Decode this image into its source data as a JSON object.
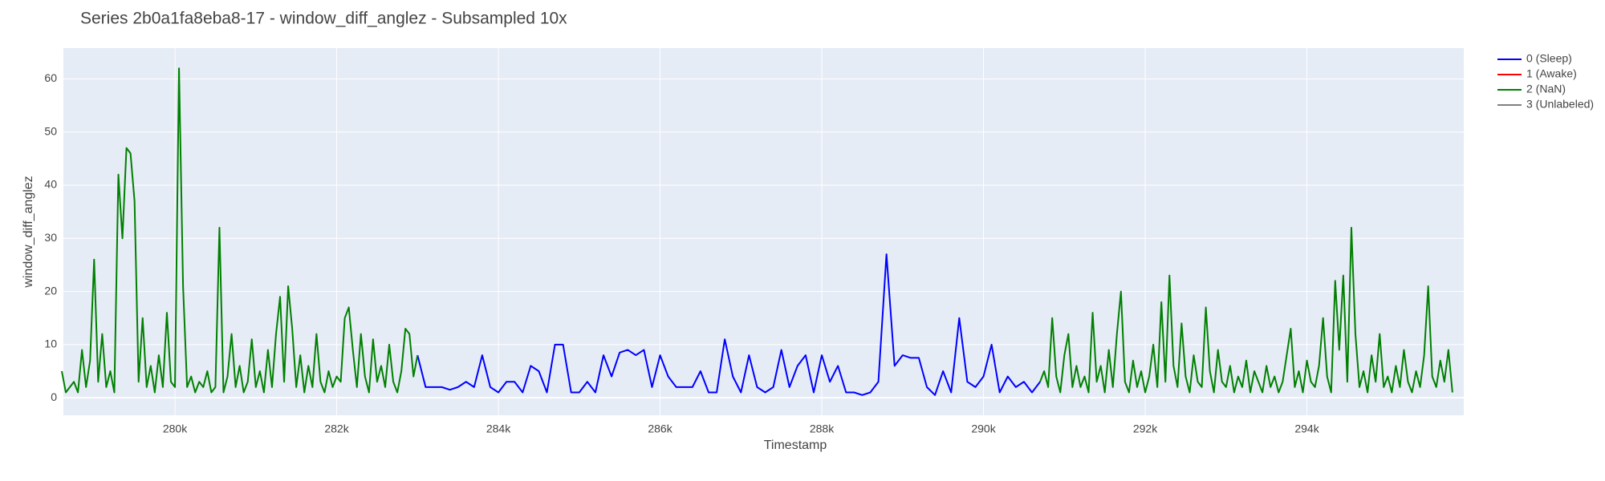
{
  "chart_data": {
    "type": "line",
    "title": "Series 2b0a1fa8eba8-17 - window_diff_anglez - Subsampled 10x",
    "x_label": "Timestamp",
    "y_label": "window_diff_anglez",
    "xlim": [
      278620,
      295940
    ],
    "ylim": [
      -3.3,
      65.8
    ],
    "xticks": [
      {
        "value": 280000,
        "label": "280k"
      },
      {
        "value": 282000,
        "label": "282k"
      },
      {
        "value": 284000,
        "label": "284k"
      },
      {
        "value": 286000,
        "label": "286k"
      },
      {
        "value": 288000,
        "label": "288k"
      },
      {
        "value": 290000,
        "label": "290k"
      },
      {
        "value": 292000,
        "label": "292k"
      },
      {
        "value": 294000,
        "label": "294k"
      }
    ],
    "yticks": [
      0,
      10,
      20,
      30,
      40,
      50,
      60
    ],
    "grid": true,
    "series": [
      {
        "name": "0 (Sleep)",
        "color": "#0000ff",
        "x": [
          283000,
          283100,
          283200,
          283300,
          283400,
          283500,
          283600,
          283700,
          283800,
          283900,
          284000,
          284100,
          284200,
          284300,
          284400,
          284500,
          284600,
          284700,
          284800,
          284900,
          285000,
          285100,
          285200,
          285300,
          285400,
          285500,
          285600,
          285700,
          285800,
          285900,
          286000,
          286100,
          286200,
          286300,
          286400,
          286500,
          286600,
          286700,
          286800,
          286900,
          287000,
          287100,
          287200,
          287300,
          287400,
          287500,
          287600,
          287700,
          287800,
          287900,
          288000,
          288100,
          288200,
          288300,
          288400,
          288500,
          288600,
          288700,
          288800,
          288900,
          289000,
          289100,
          289200,
          289300,
          289400,
          289500,
          289600,
          289700,
          289800,
          289900,
          290000,
          290100,
          290200,
          290300,
          290400,
          290500,
          290600,
          290700
        ],
        "values": [
          8,
          2,
          2,
          2,
          1.5,
          2,
          3,
          2,
          8,
          2,
          1,
          3,
          3,
          1,
          6,
          5,
          1,
          10,
          10,
          1,
          1,
          3,
          1,
          8,
          4,
          8.5,
          9,
          8,
          9,
          2,
          8,
          4,
          2,
          2,
          2,
          5,
          1,
          1,
          11,
          4,
          1,
          8,
          2,
          1,
          2,
          9,
          2,
          6,
          8,
          1,
          8,
          3,
          6,
          1,
          1,
          0.5,
          1,
          3,
          27,
          6,
          8,
          7.5,
          7.5,
          2,
          0.5,
          5,
          1,
          15,
          3,
          2,
          4,
          10,
          1,
          4,
          2,
          3,
          1,
          3
        ]
      },
      {
        "name": "1 (Awake)",
        "color": "#ff0000",
        "x": [],
        "values": []
      },
      {
        "name": "2 (NaN)",
        "color": "#008000",
        "x": [
          278600,
          278650,
          278700,
          278750,
          278800,
          278850,
          278900,
          278950,
          279000,
          279050,
          279100,
          279150,
          279200,
          279250,
          279300,
          279350,
          279400,
          279450,
          279500,
          279550,
          279600,
          279650,
          279700,
          279750,
          279800,
          279850,
          279900,
          279950,
          280000,
          280050,
          280100,
          280150,
          280200,
          280250,
          280300,
          280350,
          280400,
          280450,
          280500,
          280550,
          280600,
          280650,
          280700,
          280750,
          280800,
          280850,
          280900,
          280950,
          281000,
          281050,
          281100,
          281150,
          281200,
          281250,
          281300,
          281350,
          281400,
          281450,
          281500,
          281550,
          281600,
          281650,
          281700,
          281750,
          281800,
          281850,
          281900,
          281950,
          282000,
          282050,
          282100,
          282150,
          282200,
          282250,
          282300,
          282350,
          282400,
          282450,
          282500,
          282550,
          282600,
          282650,
          282700,
          282750,
          282800,
          282850,
          282900,
          282950,
          283000,
          286800,
          290700,
          290750,
          290800,
          290850,
          290900,
          290950,
          291000,
          291050,
          291100,
          291150,
          291200,
          291250,
          291300,
          291350,
          291400,
          291450,
          291500,
          291550,
          291600,
          291650,
          291700,
          291750,
          291800,
          291850,
          291900,
          291950,
          292000,
          292050,
          292100,
          292150,
          292200,
          292250,
          292300,
          292350,
          292400,
          292450,
          292500,
          292550,
          292600,
          292650,
          292700,
          292750,
          292800,
          292850,
          292900,
          292950,
          293000,
          293050,
          293100,
          293150,
          293200,
          293250,
          293300,
          293350,
          293400,
          293450,
          293500,
          293550,
          293600,
          293650,
          293700,
          293750,
          293800,
          293850,
          293900,
          293950,
          294000,
          294050,
          294100,
          294150,
          294200,
          294250,
          294300,
          294350,
          294400,
          294450,
          294500,
          294550,
          294600,
          294650,
          294700,
          294750,
          294800,
          294850,
          294900,
          294950,
          295000,
          295050,
          295100,
          295150,
          295200,
          295250,
          295300,
          295350,
          295400,
          295450,
          295500,
          295550,
          295600,
          295650,
          295700,
          295750,
          295800
        ],
        "values": [
          5,
          1,
          2,
          3,
          1,
          9,
          2,
          7,
          26,
          3,
          12,
          2,
          5,
          1,
          42,
          30,
          47,
          46,
          37,
          3,
          15,
          2,
          6,
          1,
          8,
          2,
          16,
          3,
          2,
          62,
          21,
          2,
          4,
          1,
          3,
          2,
          5,
          1,
          2,
          32,
          1,
          4,
          12,
          2,
          6,
          1,
          3,
          11,
          2,
          5,
          1,
          9,
          2,
          12,
          19,
          3,
          21,
          13,
          2,
          8,
          1,
          6,
          2,
          12,
          3,
          1,
          5,
          2,
          4,
          3,
          15,
          17,
          9,
          2,
          12,
          4,
          1,
          11,
          3,
          6,
          2,
          10,
          3,
          1,
          5,
          13,
          12,
          4,
          8,
          null,
          3,
          5,
          2,
          15,
          4,
          1,
          8,
          12,
          2,
          6,
          2,
          4,
          1,
          16,
          3,
          6,
          1,
          9,
          2,
          12,
          20,
          3,
          1,
          7,
          2,
          5,
          1,
          4,
          10,
          2,
          18,
          3,
          23,
          6,
          2,
          14,
          4,
          1,
          8,
          3,
          2,
          17,
          5,
          1,
          9,
          3,
          2,
          6,
          1,
          4,
          2,
          7,
          1,
          5,
          3,
          1,
          6,
          2,
          4,
          1,
          3,
          8,
          13,
          2,
          5,
          1,
          7,
          3,
          2,
          6,
          15,
          4,
          1,
          22,
          9,
          23,
          3,
          32,
          12,
          2,
          5,
          1,
          8,
          3,
          12,
          2,
          4,
          1,
          6,
          2,
          9,
          3,
          1,
          5,
          2,
          8,
          21,
          4,
          2,
          7,
          3,
          9,
          1
        ]
      },
      {
        "name": "3 (Unlabeled)",
        "color": "#808080",
        "x": [],
        "values": []
      }
    ]
  }
}
